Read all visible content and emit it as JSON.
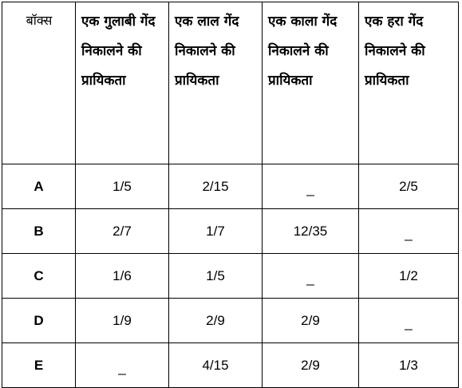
{
  "table": {
    "headers": [
      "बॉक्स",
      "एक गुलाबी गेंद निकालने की प्रायिकता",
      "एक लाल गेंद निकालने की प्रायिकता",
      "एक काला गेंद निकालने की प्रायिकता",
      "एक हरा गेंद निकालने की प्रायिकता"
    ],
    "rows": [
      [
        "A",
        "1/5",
        "2/15",
        "_",
        "2/5"
      ],
      [
        "B",
        "2/7",
        "1/7",
        "12/35",
        "_"
      ],
      [
        "C",
        "1/6",
        "1/5",
        "_",
        "1/2"
      ],
      [
        "D",
        "1/9",
        "2/9",
        "2/9",
        "_"
      ],
      [
        "E",
        "_",
        "4/15",
        "2/9",
        "1/3"
      ]
    ]
  }
}
